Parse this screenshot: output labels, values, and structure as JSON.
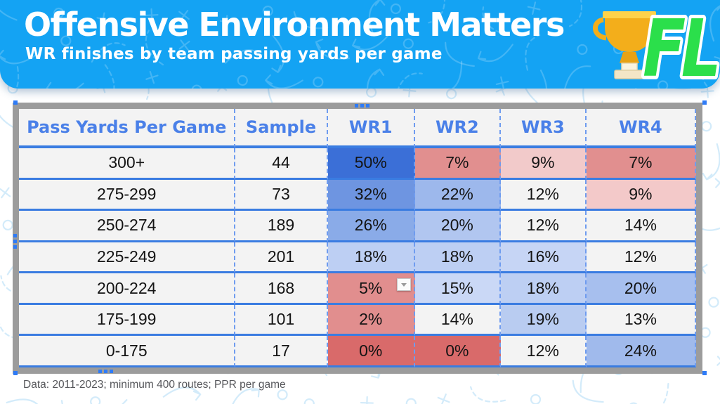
{
  "banner": {
    "title": "Offensive Environment Matters",
    "subtitle": "WR finishes by team passing yards per game",
    "background": "#14a3f3",
    "logo": {
      "letters": "FL",
      "letters_color": "#2bdf4b",
      "trophy_color": "#f3ae1b"
    }
  },
  "table": {
    "columns": [
      "Pass Yards Per Game",
      "Sample",
      "WR1",
      "WR2",
      "WR3",
      "WR4"
    ],
    "header_text_color": "#4a80e8",
    "grid_line_color": "#3a7ce1",
    "dashed_line_color": "#6f9cef",
    "frame_color": "#9c9c9c",
    "heat_blue_max": "#3b6fd7",
    "heat_red_max": "#d96a6a",
    "rows": [
      {
        "range": "300+",
        "sample": "44",
        "wr_cells": [
          {
            "v": "50%",
            "bg": "#3b6fd7"
          },
          {
            "v": "7%",
            "bg": "#e18f8f"
          },
          {
            "v": "9%",
            "bg": "#f2caca"
          },
          {
            "v": "7%",
            "bg": "#e18f8f"
          }
        ]
      },
      {
        "range": "275-299",
        "sample": "73",
        "wr_cells": [
          {
            "v": "32%",
            "bg": "#6e95e1"
          },
          {
            "v": "22%",
            "bg": "#9db8ec"
          },
          {
            "v": "12%",
            "bg": ""
          },
          {
            "v": "9%",
            "bg": "#f3c9c9"
          }
        ]
      },
      {
        "range": "250-274",
        "sample": "189",
        "wr_cells": [
          {
            "v": "26%",
            "bg": "#8aabe8"
          },
          {
            "v": "20%",
            "bg": "#b1c6f0"
          },
          {
            "v": "12%",
            "bg": ""
          },
          {
            "v": "14%",
            "bg": ""
          }
        ]
      },
      {
        "range": "225-249",
        "sample": "201",
        "wr_cells": [
          {
            "v": "18%",
            "bg": "#bdcff3"
          },
          {
            "v": "18%",
            "bg": "#bdcff3"
          },
          {
            "v": "16%",
            "bg": "#c6d5f5"
          },
          {
            "v": "12%",
            "bg": ""
          }
        ]
      },
      {
        "range": "200-224",
        "sample": "168",
        "wr_cells": [
          {
            "v": "5%",
            "bg": "#e18e8e",
            "dropdown": true
          },
          {
            "v": "15%",
            "bg": "#cad8f6"
          },
          {
            "v": "18%",
            "bg": "#bdcff3"
          },
          {
            "v": "20%",
            "bg": "#a7bfee"
          }
        ]
      },
      {
        "range": "175-199",
        "sample": "101",
        "wr_cells": [
          {
            "v": "2%",
            "bg": "#e18e8e"
          },
          {
            "v": "14%",
            "bg": ""
          },
          {
            "v": "19%",
            "bg": "#b9ccf1"
          },
          {
            "v": "13%",
            "bg": ""
          }
        ]
      },
      {
        "range": "0-175",
        "sample": "17",
        "wr_cells": [
          {
            "v": "0%",
            "bg": "#d96a6a"
          },
          {
            "v": "0%",
            "bg": "#d96a6a"
          },
          {
            "v": "12%",
            "bg": ""
          },
          {
            "v": "24%",
            "bg": "#a0baec"
          }
        ]
      }
    ]
  },
  "footer": {
    "note": "Data: 2011-2023; minimum 400 routes; PPR per game"
  },
  "chart_data": {
    "type": "table",
    "title": "Offensive Environment Matters",
    "subtitle": "WR finishes by team passing yards per game",
    "categories": [
      "300+",
      "275-299",
      "250-274",
      "225-249",
      "200-224",
      "175-199",
      "0-175"
    ],
    "category_label": "Pass Yards Per Game",
    "sample_sizes": [
      44,
      73,
      189,
      201,
      168,
      101,
      17
    ],
    "series": [
      {
        "name": "WR1",
        "values_pct": [
          50,
          32,
          26,
          18,
          5,
          2,
          0
        ]
      },
      {
        "name": "WR2",
        "values_pct": [
          7,
          22,
          20,
          18,
          15,
          14,
          0
        ]
      },
      {
        "name": "WR3",
        "values_pct": [
          9,
          12,
          12,
          16,
          18,
          19,
          12
        ]
      },
      {
        "name": "WR4",
        "values_pct": [
          7,
          9,
          14,
          12,
          20,
          13,
          24
        ]
      }
    ],
    "note": "Data: 2011-2023; minimum 400 routes; PPR per game",
    "style": "heatmap table: blue shades = high finish rate, red shades = low finish rate, white = neutral"
  }
}
